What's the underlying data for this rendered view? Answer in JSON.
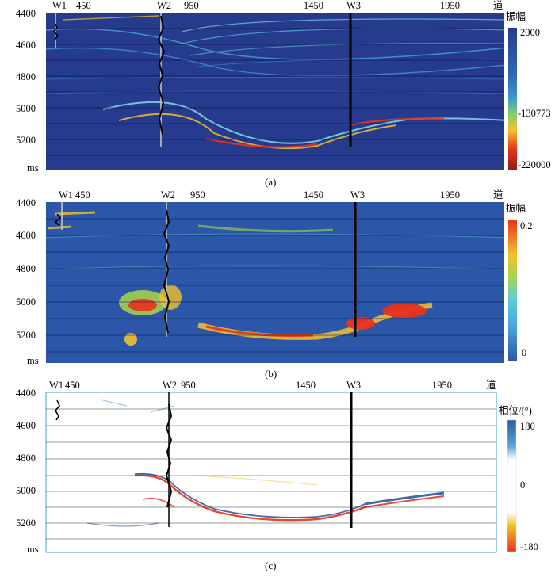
{
  "panels": [
    {
      "caption": "(a)",
      "traces_label": "道",
      "time_unit": "ms",
      "time_ticks": [
        "4400",
        "4600",
        "4800",
        "5000",
        "5200"
      ],
      "trace_ticks": [
        "450",
        "950",
        "1450",
        "1950"
      ],
      "wells": [
        "W1",
        "W2",
        "W3"
      ],
      "colorbar": {
        "title": "振幅",
        "ticks": [
          "2000",
          "-130773",
          "-220000"
        ],
        "colors": [
          "#283c8c",
          "#2d50a5",
          "#2f6bb8",
          "#3a8fc7",
          "#6fbf7a",
          "#a8d64b",
          "#f2c12e",
          "#f27a1f",
          "#d9261c",
          "#8e1b1b"
        ]
      }
    },
    {
      "caption": "(b)",
      "traces_label": "道",
      "time_unit": "ms",
      "time_ticks": [
        "4400",
        "4600",
        "4800",
        "5000",
        "5200"
      ],
      "trace_ticks": [
        "450",
        "950",
        "1450",
        "1950"
      ],
      "wells": [
        "W1",
        "W2",
        "W3"
      ],
      "colorbar": {
        "title": "振幅",
        "ticks": [
          "0.2",
          "0"
        ],
        "colors": [
          "#e8331c",
          "#f27a1f",
          "#f2c12e",
          "#a8d64b",
          "#5fd1d0",
          "#49a7e0",
          "#2f6bb8",
          "#2e57a6"
        ]
      }
    },
    {
      "caption": "(c)",
      "traces_label": "道",
      "time_unit": "ms",
      "time_ticks": [
        "4400",
        "4600",
        "4800",
        "5000",
        "5200"
      ],
      "trace_ticks": [
        "450",
        "950",
        "1450",
        "1950"
      ],
      "wells": [
        "W1",
        "W2",
        "W3"
      ],
      "colorbar": {
        "title": "相位/(°)",
        "ticks": [
          "180",
          "0",
          "-180"
        ],
        "colors": [
          "#2c5aa0",
          "#5aa6d6",
          "#ffffff",
          "#ffffff",
          "#f2c12e",
          "#e8331c"
        ]
      }
    }
  ]
}
